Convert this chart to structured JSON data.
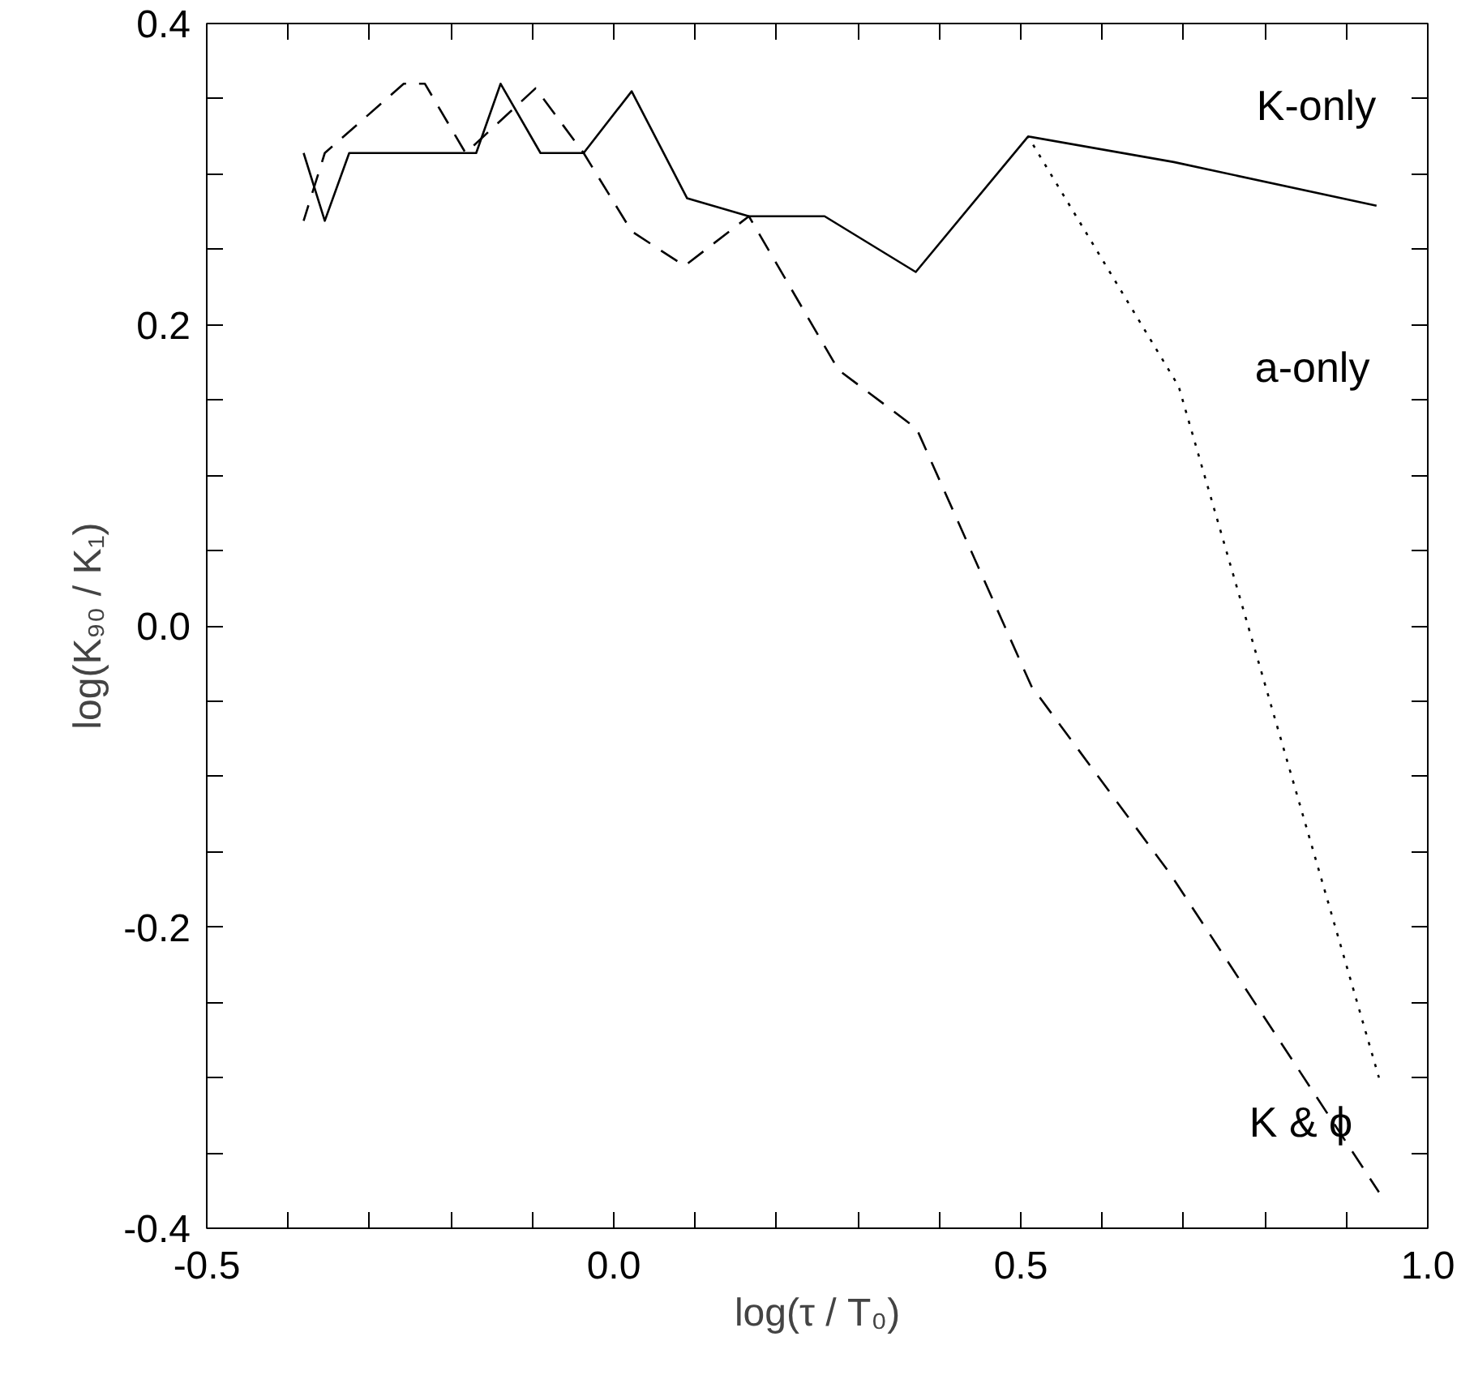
{
  "chart_data": {
    "type": "line",
    "xlabel": "log(τ / T₀)",
    "ylabel": "log(K₉₀ / K₁)",
    "xlim": [
      -0.5,
      1.0
    ],
    "ylim": [
      -0.4,
      0.4
    ],
    "xticks": [
      {
        "value": -0.5,
        "label": "-0.5"
      },
      {
        "value": -0.4,
        "label": null
      },
      {
        "value": -0.3,
        "label": null
      },
      {
        "value": -0.2,
        "label": null
      },
      {
        "value": -0.1,
        "label": null
      },
      {
        "value": 0.0,
        "label": "0.0"
      },
      {
        "value": 0.1,
        "label": null
      },
      {
        "value": 0.2,
        "label": null
      },
      {
        "value": 0.3,
        "label": null
      },
      {
        "value": 0.4,
        "label": null
      },
      {
        "value": 0.5,
        "label": "0.5"
      },
      {
        "value": 0.6,
        "label": null
      },
      {
        "value": 0.7,
        "label": null
      },
      {
        "value": 0.8,
        "label": null
      },
      {
        "value": 0.9,
        "label": null
      },
      {
        "value": 1.0,
        "label": "1.0"
      }
    ],
    "yticks": [
      {
        "value": -0.4,
        "label": "-0.4"
      },
      {
        "value": -0.35,
        "label": null
      },
      {
        "value": -0.3,
        "label": null
      },
      {
        "value": -0.25,
        "label": null
      },
      {
        "value": -0.2,
        "label": "-0.2"
      },
      {
        "value": -0.15,
        "label": null
      },
      {
        "value": -0.1,
        "label": null
      },
      {
        "value": -0.05,
        "label": null
      },
      {
        "value": 0.0,
        "label": "0.0"
      },
      {
        "value": 0.05,
        "label": null
      },
      {
        "value": 0.1,
        "label": null
      },
      {
        "value": 0.15,
        "label": null
      },
      {
        "value": 0.2,
        "label": "0.2"
      },
      {
        "value": 0.25,
        "label": null
      },
      {
        "value": 0.3,
        "label": null
      },
      {
        "value": 0.35,
        "label": null
      },
      {
        "value": 0.4,
        "label": "0.4"
      }
    ],
    "grid": false,
    "series": [
      {
        "name": "K-only",
        "color": "#000000",
        "line_style": "solid",
        "x": [
          -0.381,
          -0.355,
          -0.325,
          -0.169,
          -0.139,
          -0.09,
          -0.037,
          0.022,
          0.09,
          0.166,
          0.259,
          0.371,
          0.509,
          0.688,
          0.937
        ],
        "values": [
          0.314,
          0.269,
          0.314,
          0.314,
          0.36,
          0.314,
          0.314,
          0.355,
          0.284,
          0.272,
          0.272,
          0.235,
          0.325,
          0.308,
          0.279
        ]
      },
      {
        "name": "a-only",
        "color": "#000000",
        "line_style": "dotted",
        "x": [
          0.509,
          0.694,
          0.94
        ],
        "values": [
          0.325,
          0.159,
          -0.3
        ]
      },
      {
        "name": "K & ϕ",
        "color": "#000000",
        "line_style": "dashed",
        "x": [
          -0.381,
          -0.355,
          -0.258,
          -0.232,
          -0.182,
          -0.096,
          -0.037,
          0.022,
          0.087,
          0.166,
          0.276,
          0.372,
          0.513,
          0.684,
          0.94
        ],
        "values": [
          0.269,
          0.314,
          0.36,
          0.36,
          0.314,
          0.357,
          0.314,
          0.262,
          0.239,
          0.272,
          0.17,
          0.131,
          -0.04,
          -0.165,
          -0.376
        ]
      }
    ]
  }
}
